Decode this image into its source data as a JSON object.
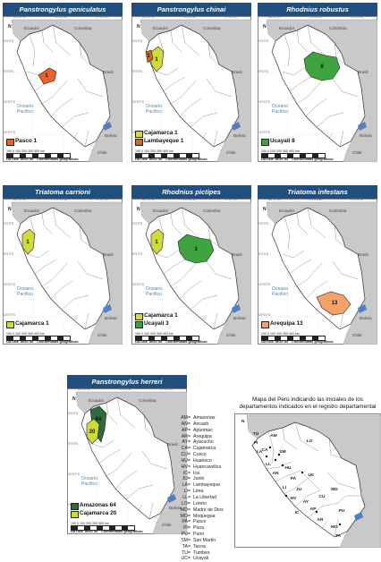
{
  "common": {
    "ocean_line1": "Oceano",
    "ocean_line2": "Pacifico",
    "ecuador": "Ecuador",
    "colombia": "Colombia",
    "brasil": "Brasil",
    "bolivia": "Bolivia",
    "chile": "Chile",
    "datum": "DATUM: WGS 84",
    "coords": "Coordenadas geográficas",
    "scale_ticks": "100  0  100  200  300  400 km",
    "lon_a": "80°0'0\"W",
    "lon_b": "75°0'0\"W",
    "lon_c": "70°0'0\"W",
    "lat_a": "0°0'0\"S",
    "lat_b": "5°0'0\"S",
    "lat_c": "10°0'0\"S",
    "lat_d": "15°0'0\"S",
    "north": "N",
    "colors": {
      "title_bg": "#1e4f7e",
      "land": "#c9c9c9",
      "peru": "#ffffff",
      "ocean": "#ffffff",
      "orange_red": "#e8612a",
      "yellow_green": "#cddc3a",
      "brown_orange": "#c96a2a",
      "green": "#3fa33f",
      "salmon": "#f4a26a",
      "dark_green": "#2f6b3f"
    }
  },
  "panels": [
    {
      "title": "Panstrongylus geniculatus",
      "legend": [
        {
          "label": "Pasco 1",
          "color": "#e8612a"
        }
      ],
      "regions": [
        {
          "code": "PA",
          "value": 1,
          "color": "#e8612a"
        }
      ]
    },
    {
      "title": "Panstrongylus chinai",
      "legend": [
        {
          "label": "Cajamarca 1",
          "color": "#cddc3a"
        },
        {
          "label": "Lambayeque 1",
          "color": "#c96a2a"
        }
      ],
      "regions": [
        {
          "code": "CA",
          "value": 1,
          "color": "#cddc3a"
        },
        {
          "code": "LA",
          "value": 1,
          "color": "#c96a2a"
        }
      ]
    },
    {
      "title": "Rhodnius robustus",
      "legend": [
        {
          "label": "Ucayali 8",
          "color": "#3fa33f"
        }
      ],
      "regions": [
        {
          "code": "UC",
          "value": 8,
          "color": "#3fa33f"
        }
      ]
    },
    {
      "title": "Triatoma carrioni",
      "legend": [
        {
          "label": "Cajamarca 1",
          "color": "#cddc3a"
        }
      ],
      "regions": [
        {
          "code": "CA",
          "value": 1,
          "color": "#cddc3a"
        }
      ]
    },
    {
      "title": "Rhodnius pictipes",
      "legend": [
        {
          "label": "Cajamarca 1",
          "color": "#cddc3a"
        },
        {
          "label": "Ucayali 3",
          "color": "#3fa33f"
        }
      ],
      "regions": [
        {
          "code": "CA",
          "value": 1,
          "color": "#cddc3a"
        },
        {
          "code": "UC",
          "value": 3,
          "color": "#3fa33f"
        }
      ]
    },
    {
      "title": "Triatoma infestans",
      "legend": [
        {
          "label": "Arequipa 13",
          "color": "#f4a26a"
        }
      ],
      "regions": [
        {
          "code": "AR",
          "value": 13,
          "color": "#f4a26a"
        }
      ]
    },
    {
      "title": "Panstrongylus herreri",
      "legend": [
        {
          "label": "Amazonas 64",
          "color": "#2f6b3f"
        },
        {
          "label": "Cajamarca 20",
          "color": "#cddc3a"
        }
      ],
      "regions": [
        {
          "code": "AM",
          "value": 64,
          "color": "#2f6b3f"
        },
        {
          "code": "CA",
          "value": 20,
          "color": "#cddc3a"
        }
      ]
    }
  ],
  "abbreviations": [
    {
      "code": "AM=",
      "name": "Amazonas"
    },
    {
      "code": "AN=",
      "name": "Ancash"
    },
    {
      "code": "AP=",
      "name": "Apurimac"
    },
    {
      "code": "AR=",
      "name": "Arequipa"
    },
    {
      "code": "AY=",
      "name": "Ayacucho"
    },
    {
      "code": "CA=",
      "name": "Cajamarca"
    },
    {
      "code": "CU=",
      "name": "Cusco"
    },
    {
      "code": "HU=",
      "name": "Huanuco"
    },
    {
      "code": "HV=",
      "name": "Huancavelica"
    },
    {
      "code": "IC=",
      "name": "Ica"
    },
    {
      "code": "JU=",
      "name": "Junin"
    },
    {
      "code": "LA=",
      "name": "Lambayeque"
    },
    {
      "code": "LI=",
      "name": "Lima"
    },
    {
      "code": "LL=",
      "name": "La Libertad"
    },
    {
      "code": "LO=",
      "name": "Loreto"
    },
    {
      "code": "MD=",
      "name": "Madre de Dios"
    },
    {
      "code": "MO=",
      "name": "Moquegua"
    },
    {
      "code": "PA=",
      "name": "Pasco"
    },
    {
      "code": "PI=",
      "name": "Piura"
    },
    {
      "code": "PU=",
      "name": "Puno"
    },
    {
      "code": "SM=",
      "name": "San Martin"
    },
    {
      "code": "TA=",
      "name": "Tacna"
    },
    {
      "code": "TU=",
      "name": "Tumbes"
    },
    {
      "code": "UC=",
      "name": "Ucayali"
    }
  ],
  "peru_map": {
    "title": "Mapa del Perú indicando las iniciales de los departamentos indicados en el registro departamental",
    "labels": [
      "TU",
      "AM",
      "LO",
      "CA",
      "SM",
      "LL",
      "AN",
      "HU",
      "UC",
      "PA",
      "LI",
      "JU",
      "MD",
      "HV",
      "AY",
      "CU",
      "AP",
      "PU",
      "IC",
      "AR",
      "MO",
      "TA",
      "PI",
      "LA"
    ]
  }
}
